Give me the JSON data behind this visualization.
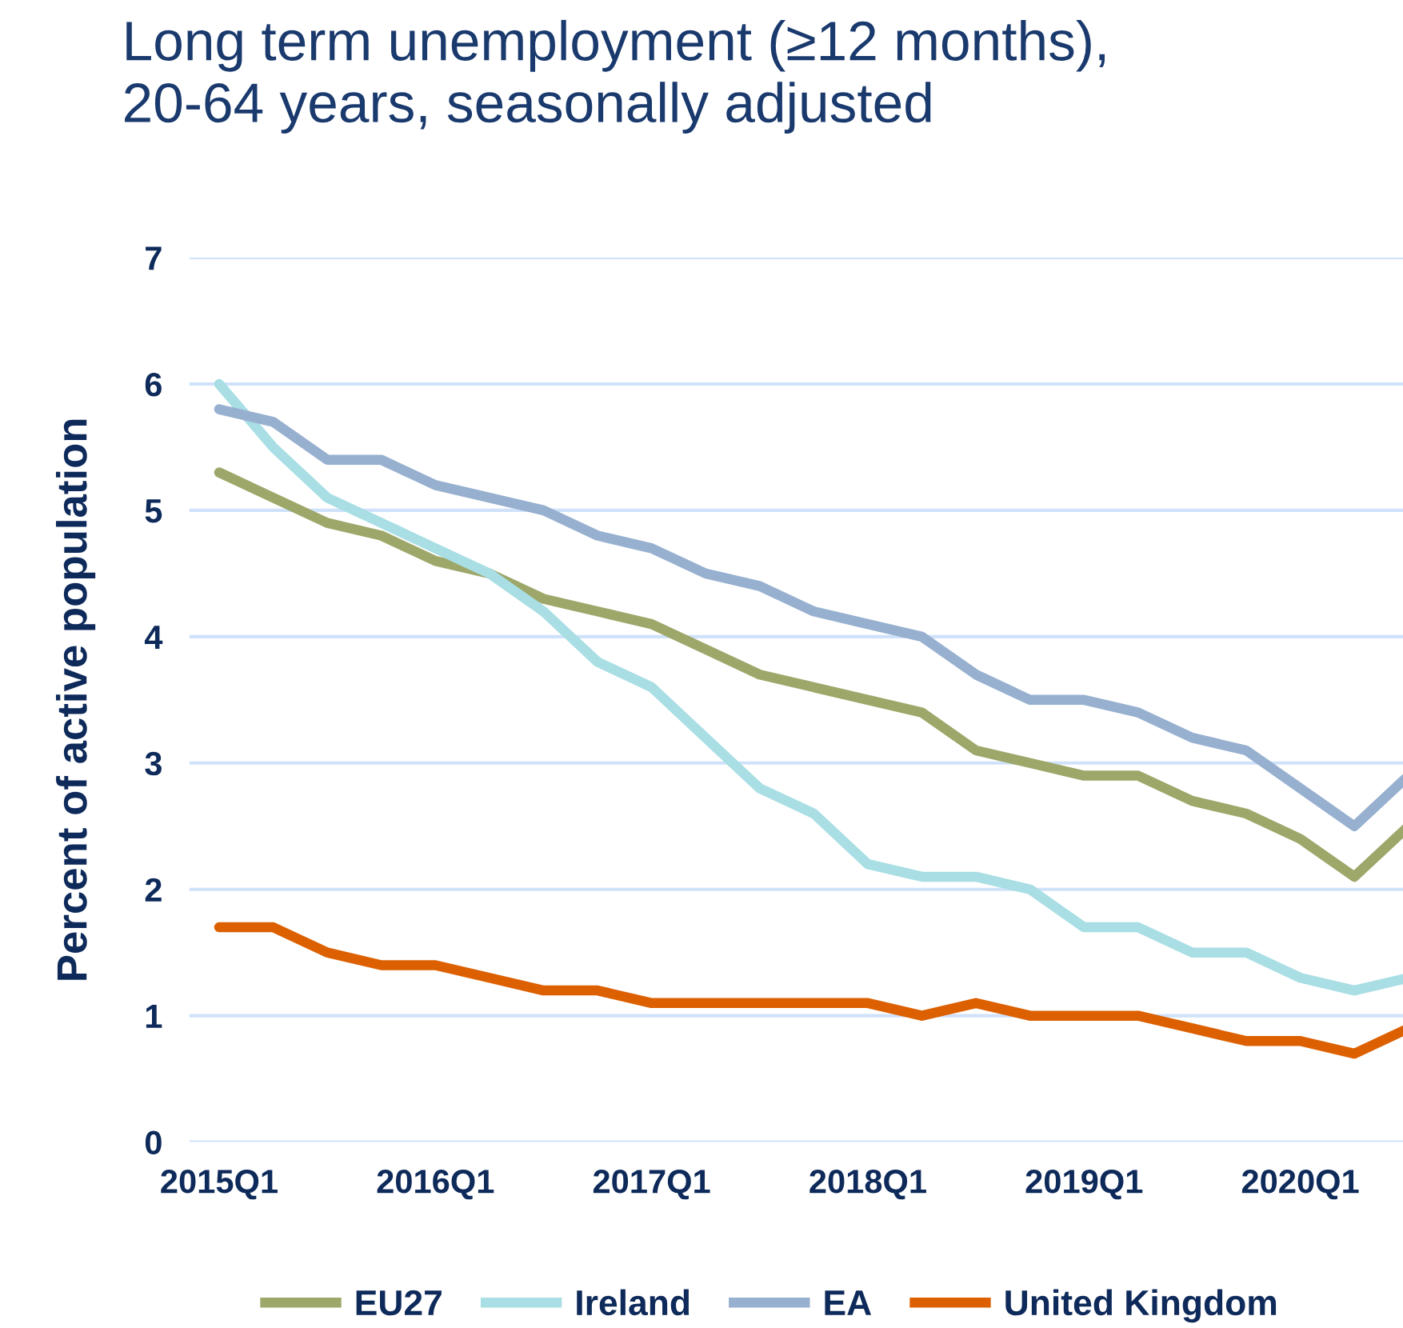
{
  "chart_data": {
    "type": "line",
    "title": "Long term unemployment (≥12 months),\n20-64 years, seasonally adjusted",
    "ylabel": "Percent of active population",
    "categories": [
      "2015Q1",
      null,
      null,
      null,
      "2016Q1",
      null,
      null,
      null,
      "2017Q1",
      null,
      null,
      null,
      "2018Q1",
      null,
      null,
      null,
      "2019Q1",
      null,
      null,
      null,
      "2020Q1",
      null,
      null
    ],
    "series": [
      {
        "name": "EU27",
        "color": "#9ea76a",
        "values": [
          5.3,
          5.1,
          4.9,
          4.8,
          4.6,
          4.5,
          4.3,
          4.2,
          4.1,
          3.9,
          3.7,
          3.6,
          3.5,
          3.4,
          3.1,
          3.0,
          2.9,
          2.9,
          2.7,
          2.6,
          2.4,
          2.1,
          2.5
        ]
      },
      {
        "name": "Ireland",
        "color": "#a8dee4",
        "values": [
          6.0,
          5.5,
          5.1,
          4.9,
          4.7,
          4.5,
          4.2,
          3.8,
          3.6,
          3.2,
          2.8,
          2.6,
          2.2,
          2.1,
          2.1,
          2.0,
          1.7,
          1.7,
          1.5,
          1.5,
          1.3,
          1.2,
          1.3
        ]
      },
      {
        "name": "EA",
        "color": "#97b0cf",
        "values": [
          5.8,
          5.7,
          5.4,
          5.4,
          5.2,
          5.1,
          5.0,
          4.8,
          4.7,
          4.5,
          4.4,
          4.2,
          4.1,
          4.0,
          3.7,
          3.5,
          3.5,
          3.4,
          3.2,
          3.1,
          2.8,
          2.5,
          2.9
        ]
      },
      {
        "name": "United Kingdom",
        "color": "#dc6000",
        "values": [
          1.7,
          1.7,
          1.5,
          1.4,
          1.4,
          1.3,
          1.2,
          1.2,
          1.1,
          1.1,
          1.1,
          1.1,
          1.1,
          1.0,
          1.1,
          1.0,
          1.0,
          1.0,
          0.9,
          0.8,
          0.8,
          0.7,
          0.9
        ]
      }
    ],
    "ylim": [
      0,
      7
    ],
    "yticks": [
      0,
      1,
      2,
      3,
      4,
      5,
      6,
      7
    ],
    "grid": "y",
    "legend": "bottom",
    "marker": "none",
    "line_style": "solid"
  }
}
